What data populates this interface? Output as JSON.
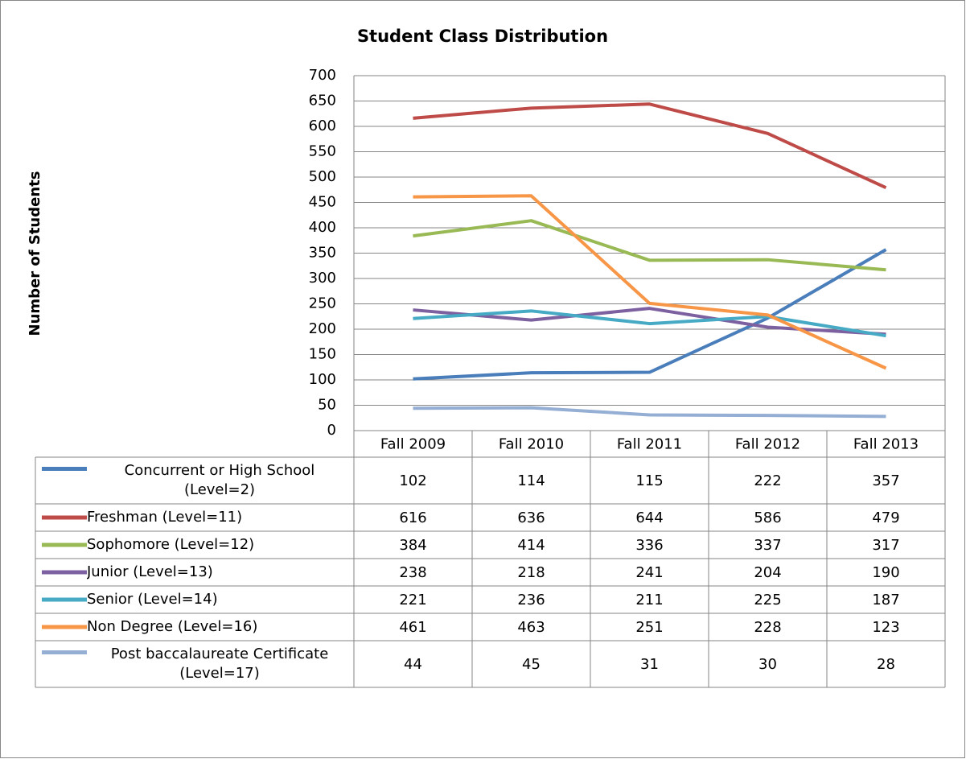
{
  "chart_data": {
    "type": "line",
    "title": "Student Class Distribution",
    "y_label": "Number of Students",
    "categories": [
      "Fall 2009",
      "Fall 2010",
      "Fall 2011",
      "Fall 2012",
      "Fall 2013"
    ],
    "ylim": [
      0,
      700
    ],
    "yticks": [
      0,
      50,
      100,
      150,
      200,
      250,
      300,
      350,
      400,
      450,
      500,
      550,
      600,
      650,
      700
    ],
    "grid": true,
    "series": [
      {
        "name": "Concurrent or High School (Level=2)",
        "color": "#4a7ebb",
        "values": [
          102,
          114,
          115,
          222,
          357
        ]
      },
      {
        "name": "Freshman (Level=11)",
        "color": "#be4b48",
        "values": [
          616,
          636,
          644,
          586,
          479
        ]
      },
      {
        "name": "Sophomore (Level=12)",
        "color": "#98b954",
        "values": [
          384,
          414,
          336,
          337,
          317
        ]
      },
      {
        "name": "Junior (Level=13)",
        "color": "#7d60a0",
        "values": [
          238,
          218,
          241,
          204,
          190
        ]
      },
      {
        "name": "Senior (Level=14)",
        "color": "#46aac5",
        "values": [
          221,
          236,
          211,
          225,
          187
        ]
      },
      {
        "name": "Non Degree (Level=16)",
        "color": "#f79646",
        "values": [
          461,
          463,
          251,
          228,
          123
        ]
      },
      {
        "name": "Post baccalaureate Certificate (Level=17)",
        "color": "#94aed4",
        "values": [
          44,
          45,
          31,
          30,
          28
        ]
      }
    ]
  }
}
